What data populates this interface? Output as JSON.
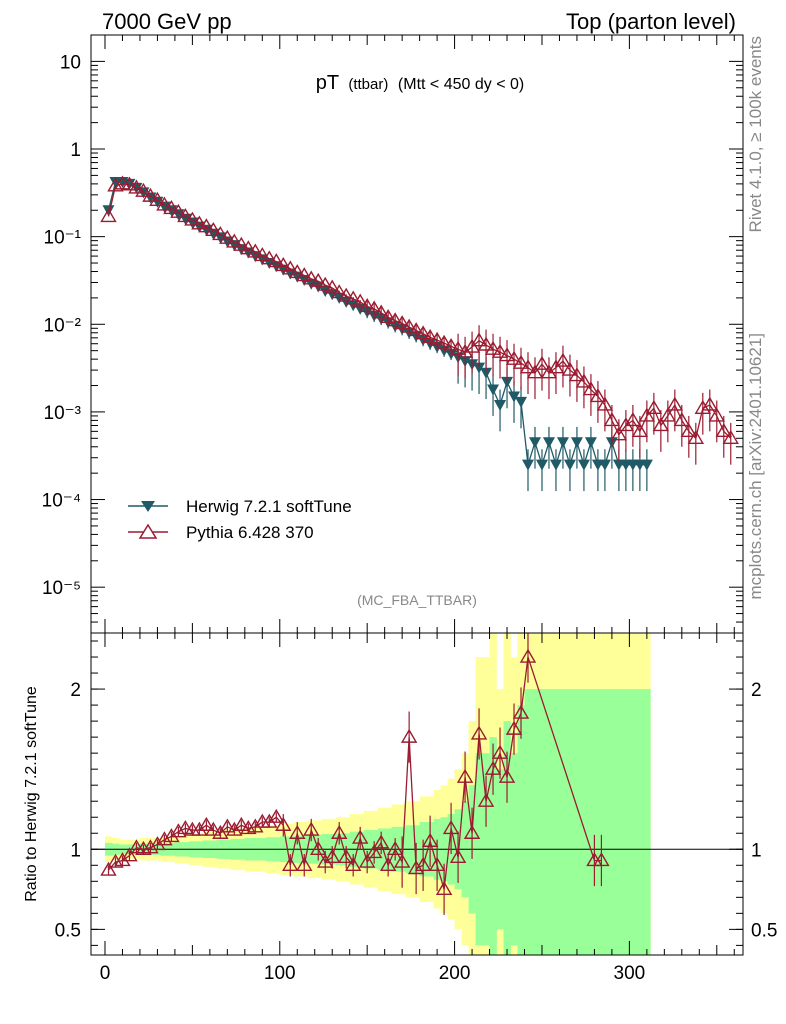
{
  "header": {
    "left": "7000 GeV pp",
    "right": "Top (parton level)"
  },
  "side_text": {
    "rivet": "Rivet 4.1.0, ≥ 100k events",
    "mcplots": "mcplots.cern.ch [arXiv:2401.10621]"
  },
  "plot_title": {
    "main": "pT",
    "sub": "(ttbar)",
    "cut": "(Mtt < 450 dy < 0)"
  },
  "analysis_tag": "(MC_FBA_TTBAR)",
  "ratio_ylabel": "Ratio to Herwig 7.2.1 softTune",
  "colors": {
    "herwig": "#1f5a66",
    "pythia": "#9b1b30",
    "band_inner": "#99ff99",
    "band_outer": "#ffff99"
  },
  "chart_data": [
    {
      "type": "line",
      "panel": "main",
      "yscale": "log",
      "xlim": [
        -8,
        365
      ],
      "ylim": [
        3e-06,
        20
      ],
      "y_ticks": [
        {
          "value": 10,
          "label": "10"
        },
        {
          "value": 1,
          "label": "1"
        },
        {
          "value": 0.1,
          "label": "10⁻¹"
        },
        {
          "value": 0.01,
          "label": "10⁻²"
        },
        {
          "value": 0.001,
          "label": "10⁻³"
        },
        {
          "value": 0.0001,
          "label": "10⁻⁴"
        },
        {
          "value": 1e-05,
          "label": "10⁻⁵"
        }
      ],
      "series": [
        {
          "name": "Herwig 7.2.1 softTune",
          "marker": "filled-triangle-down",
          "x": [
            2,
            6,
            10,
            14,
            18,
            22,
            26,
            30,
            34,
            38,
            42,
            46,
            50,
            54,
            58,
            62,
            66,
            70,
            74,
            78,
            82,
            86,
            90,
            94,
            98,
            102,
            106,
            110,
            114,
            118,
            122,
            126,
            130,
            134,
            138,
            142,
            146,
            150,
            154,
            158,
            162,
            166,
            170,
            174,
            178,
            182,
            186,
            190,
            194,
            198,
            202,
            206,
            210,
            214,
            218,
            222,
            226,
            230,
            234,
            238,
            242,
            246,
            250,
            254,
            258,
            262,
            266,
            270,
            274,
            278,
            282,
            286,
            290,
            294,
            298,
            302,
            306,
            310
          ],
          "y": [
            0.2,
            0.42,
            0.42,
            0.4,
            0.36,
            0.32,
            0.28,
            0.25,
            0.22,
            0.2,
            0.18,
            0.16,
            0.145,
            0.13,
            0.12,
            0.108,
            0.098,
            0.088,
            0.08,
            0.072,
            0.066,
            0.06,
            0.055,
            0.05,
            0.046,
            0.042,
            0.038,
            0.035,
            0.032,
            0.029,
            0.027,
            0.024,
            0.022,
            0.02,
            0.018,
            0.0165,
            0.015,
            0.0138,
            0.0125,
            0.0115,
            0.0105,
            0.0095,
            0.0088,
            0.008,
            0.0073,
            0.0066,
            0.006,
            0.0055,
            0.005,
            0.0046,
            0.0042,
            0.0038,
            0.0035,
            0.0032,
            0.0028,
            0.0018,
            0.0012,
            0.0022,
            0.0015,
            0.0013,
            0.00025,
            0.00045,
            0.00025,
            0.00045,
            0.00025,
            0.00045,
            0.00025,
            0.00045,
            0.00025,
            0.00045,
            0.00025,
            0.00025,
            0.00045,
            0.00025,
            0.00025,
            0.00025,
            0.00025,
            0.00025
          ]
        },
        {
          "name": "Pythia 6.428 370",
          "marker": "open-triangle-up",
          "x": [
            2,
            6,
            10,
            14,
            18,
            22,
            26,
            30,
            34,
            38,
            42,
            46,
            50,
            54,
            58,
            62,
            66,
            70,
            74,
            78,
            82,
            86,
            90,
            94,
            98,
            102,
            106,
            110,
            114,
            118,
            122,
            126,
            130,
            134,
            138,
            142,
            146,
            150,
            154,
            158,
            162,
            166,
            170,
            174,
            178,
            182,
            186,
            190,
            194,
            198,
            202,
            206,
            210,
            214,
            218,
            222,
            226,
            230,
            234,
            238,
            242,
            246,
            250,
            254,
            258,
            262,
            266,
            270,
            274,
            278,
            282,
            286,
            290,
            294,
            298,
            302,
            306,
            310,
            314,
            318,
            322,
            326,
            330,
            334,
            338,
            342,
            346,
            350,
            354,
            358
          ],
          "y": [
            0.17,
            0.38,
            0.4,
            0.39,
            0.36,
            0.33,
            0.29,
            0.26,
            0.23,
            0.21,
            0.19,
            0.17,
            0.155,
            0.14,
            0.13,
            0.118,
            0.106,
            0.096,
            0.087,
            0.08,
            0.073,
            0.067,
            0.061,
            0.056,
            0.052,
            0.047,
            0.043,
            0.039,
            0.036,
            0.033,
            0.031,
            0.028,
            0.026,
            0.023,
            0.021,
            0.0195,
            0.018,
            0.016,
            0.015,
            0.0135,
            0.012,
            0.011,
            0.0102,
            0.0093,
            0.0085,
            0.0078,
            0.0071,
            0.0066,
            0.0061,
            0.0056,
            0.0052,
            0.0048,
            0.0055,
            0.0065,
            0.0058,
            0.0052,
            0.0048,
            0.0044,
            0.004,
            0.0036,
            0.0032,
            0.0028,
            0.0035,
            0.0028,
            0.0032,
            0.0038,
            0.003,
            0.0026,
            0.0022,
            0.0018,
            0.0015,
            0.0012,
            0.0008,
            0.00055,
            0.0007,
            0.0008,
            0.0006,
            0.0009,
            0.0011,
            0.0007,
            0.0009,
            0.0012,
            0.0008,
            0.0006,
            0.0005,
            0.0011,
            0.0012,
            0.0009,
            0.0006,
            0.0005
          ]
        }
      ],
      "legend_position": "bottom-left"
    },
    {
      "type": "line",
      "panel": "ratio",
      "xlabel": "",
      "xlim": [
        -8,
        365
      ],
      "ylim": [
        0.34,
        2.35
      ],
      "x_ticks": [
        0,
        100,
        200,
        300
      ],
      "y_ticks": [
        {
          "value": 0.5,
          "label": "0.5"
        },
        {
          "value": 1,
          "label": "1"
        },
        {
          "value": 2,
          "label": "2"
        }
      ],
      "reference_line": 1,
      "uncertainty_band": {
        "x": [
          2,
          6,
          10,
          14,
          18,
          22,
          26,
          30,
          34,
          38,
          42,
          46,
          50,
          54,
          58,
          62,
          66,
          70,
          74,
          78,
          82,
          86,
          90,
          94,
          98,
          102,
          106,
          110,
          114,
          118,
          122,
          126,
          130,
          134,
          138,
          142,
          146,
          150,
          154,
          158,
          162,
          166,
          170,
          174,
          178,
          182,
          186,
          190,
          194,
          198,
          202,
          206,
          210,
          214,
          218,
          222,
          226,
          230,
          234,
          238,
          242,
          246,
          250,
          254,
          258,
          262,
          266,
          270,
          274,
          278,
          282,
          286,
          290,
          294,
          298,
          302,
          306,
          310
        ],
        "inner": [
          0.04,
          0.035,
          0.03,
          0.03,
          0.03,
          0.035,
          0.035,
          0.035,
          0.04,
          0.04,
          0.045,
          0.045,
          0.05,
          0.05,
          0.055,
          0.055,
          0.06,
          0.06,
          0.065,
          0.065,
          0.07,
          0.07,
          0.07,
          0.075,
          0.075,
          0.08,
          0.08,
          0.085,
          0.085,
          0.09,
          0.09,
          0.095,
          0.095,
          0.1,
          0.1,
          0.11,
          0.11,
          0.12,
          0.12,
          0.13,
          0.13,
          0.14,
          0.14,
          0.15,
          0.15,
          0.17,
          0.17,
          0.19,
          0.2,
          0.22,
          0.25,
          0.3,
          0.4,
          0.6,
          0.6,
          0.7,
          0.5,
          0.8,
          0.6,
          0.9,
          1.0,
          1.0,
          1.0,
          1.0,
          1.0,
          1.0,
          1.0,
          1.0,
          1.0,
          1.0,
          1.0,
          1.0,
          1.0,
          1.0,
          1.0,
          1.0,
          1.0,
          1.0
        ],
        "outer": [
          0.08,
          0.07,
          0.06,
          0.06,
          0.06,
          0.07,
          0.07,
          0.07,
          0.08,
          0.08,
          0.09,
          0.09,
          0.1,
          0.1,
          0.11,
          0.11,
          0.12,
          0.12,
          0.13,
          0.13,
          0.14,
          0.14,
          0.14,
          0.15,
          0.15,
          0.16,
          0.16,
          0.17,
          0.17,
          0.18,
          0.18,
          0.19,
          0.19,
          0.2,
          0.2,
          0.22,
          0.22,
          0.24,
          0.24,
          0.26,
          0.26,
          0.28,
          0.28,
          0.3,
          0.3,
          0.33,
          0.33,
          0.37,
          0.4,
          0.44,
          0.5,
          0.6,
          0.8,
          1.2,
          1.2,
          1.4,
          1.0,
          1.6,
          1.2,
          1.8,
          2.0,
          2.0,
          2.0,
          2.0,
          2.0,
          2.0,
          2.0,
          2.0,
          2.0,
          2.0,
          2.0,
          2.0,
          2.0,
          2.0,
          2.0,
          2.0,
          2.0,
          2.0
        ]
      },
      "series": [
        {
          "name": "Pythia 6.428 370 / Herwig 7.2.1 softTune",
          "x": [
            2,
            6,
            10,
            14,
            18,
            22,
            26,
            30,
            34,
            38,
            42,
            46,
            50,
            54,
            58,
            62,
            66,
            70,
            74,
            78,
            82,
            86,
            90,
            94,
            98,
            102,
            106,
            110,
            114,
            118,
            122,
            126,
            130,
            134,
            138,
            142,
            146,
            150,
            154,
            158,
            162,
            166,
            170,
            174,
            178,
            182,
            186,
            190,
            194,
            198,
            202,
            206,
            210,
            214,
            218,
            222,
            226,
            230,
            234,
            238,
            242,
            280,
            284
          ],
          "y": [
            0.87,
            0.92,
            0.93,
            0.96,
            1.01,
            1.0,
            1.01,
            1.03,
            1.06,
            1.08,
            1.11,
            1.13,
            1.12,
            1.12,
            1.15,
            1.12,
            1.1,
            1.14,
            1.12,
            1.15,
            1.13,
            1.14,
            1.17,
            1.17,
            1.2,
            1.15,
            0.9,
            1.1,
            0.9,
            1.12,
            1.0,
            0.92,
            0.95,
            1.1,
            0.95,
            0.9,
            1.07,
            0.92,
            0.98,
            1.04,
            0.9,
            1.0,
            0.92,
            1.7,
            0.88,
            0.9,
            1.05,
            0.9,
            0.75,
            1.13,
            0.95,
            1.45,
            1.1,
            1.72,
            1.3,
            1.5,
            1.6,
            1.45,
            1.75,
            1.85,
            2.2,
            0.93,
            0.93
          ]
        }
      ]
    }
  ]
}
